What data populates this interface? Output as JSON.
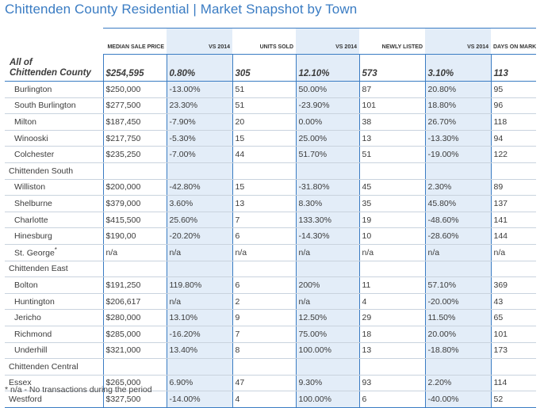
{
  "title": "Chittenden County Residential | Market Snapshot by Town",
  "headers": [
    "",
    "MEDIAN SALE PRICE",
    "VS 2014",
    "UNITS SOLD",
    "VS 2014",
    "NEWLY LISTED",
    "VS 2014",
    "DAYS ON MARKET"
  ],
  "summary": {
    "label_line1": "All of",
    "label_line2": "Chittenden County",
    "values": [
      "$254,595",
      "0.80%",
      "305",
      "12.10%",
      "573",
      "3.10%",
      "113"
    ]
  },
  "rows": [
    {
      "kind": "child",
      "label": "Burlington",
      "values": [
        "$250,000",
        "-13.00%",
        "51",
        "50.00%",
        "87",
        "20.80%",
        "95"
      ]
    },
    {
      "kind": "child",
      "label": "South Burlington",
      "values": [
        "$277,500",
        "23.30%",
        "51",
        "-23.90%",
        "101",
        "18.80%",
        "96"
      ]
    },
    {
      "kind": "child",
      "label": "Milton",
      "values": [
        "$187,450",
        "-7.90%",
        "20",
        "0.00%",
        "38",
        "26.70%",
        "118"
      ]
    },
    {
      "kind": "child",
      "label": "Winooski",
      "values": [
        "$217,750",
        "-5.30%",
        "15",
        "25.00%",
        "13",
        "-13.30%",
        "94"
      ]
    },
    {
      "kind": "child",
      "label": "Colchester",
      "values": [
        "$235,250",
        "-7.00%",
        "44",
        "51.70%",
        "51",
        "-19.00%",
        "122"
      ]
    },
    {
      "kind": "group",
      "label": "Chittenden South",
      "values": [
        "",
        "",
        "",
        "",
        "",
        "",
        ""
      ]
    },
    {
      "kind": "child",
      "label": "Williston",
      "values": [
        "$200,000",
        "-42.80%",
        "15",
        "-31.80%",
        "45",
        "2.30%",
        "89"
      ]
    },
    {
      "kind": "child",
      "label": "Shelburne",
      "values": [
        "$379,000",
        "3.60%",
        "13",
        "8.30%",
        "35",
        "45.80%",
        "137"
      ]
    },
    {
      "kind": "child",
      "label": "Charlotte",
      "values": [
        "$415,500",
        "25.60%",
        "7",
        "133.30%",
        "19",
        "-48.60%",
        "141"
      ]
    },
    {
      "kind": "child",
      "label": "Hinesburg",
      "values": [
        "$190,00",
        "-20.20%",
        "6",
        "-14.30%",
        "10",
        "-28.60%",
        "144"
      ]
    },
    {
      "kind": "child",
      "label": "St. George",
      "sup": "*",
      "values": [
        "n/a",
        "n/a",
        "n/a",
        "n/a",
        "n/a",
        "n/a",
        "n/a"
      ]
    },
    {
      "kind": "group",
      "label": "Chittenden East",
      "values": [
        "",
        "",
        "",
        "",
        "",
        "",
        ""
      ]
    },
    {
      "kind": "child",
      "label": "Bolton",
      "values": [
        "$191,250",
        "119.80%",
        "6",
        "200%",
        "11",
        "57.10%",
        "369"
      ]
    },
    {
      "kind": "child",
      "label": "Huntington",
      "values": [
        "$206,617",
        "n/a",
        "2",
        "n/a",
        "4",
        "-20.00%",
        "43"
      ]
    },
    {
      "kind": "child",
      "label": "Jericho",
      "values": [
        "$280,000",
        "13.10%",
        "9",
        "12.50%",
        "29",
        "11.50%",
        "65"
      ]
    },
    {
      "kind": "child",
      "label": "Richmond",
      "values": [
        "$285,000",
        "-16.20%",
        "7",
        "75.00%",
        "18",
        "20.00%",
        "101"
      ]
    },
    {
      "kind": "child",
      "label": "Underhill",
      "values": [
        "$321,000",
        "13.40%",
        "8",
        "100.00%",
        "13",
        "-18.80%",
        "173"
      ]
    },
    {
      "kind": "group",
      "label": "Chittenden Central",
      "values": [
        "",
        "",
        "",
        "",
        "",
        "",
        ""
      ]
    },
    {
      "kind": "plain",
      "label": "Essex",
      "values": [
        "$265,000",
        "6.90%",
        "47",
        "9.30%",
        "93",
        "2.20%",
        "114"
      ]
    },
    {
      "kind": "plain",
      "label": "Westford",
      "values": [
        "$327,500",
        "-14.00%",
        "4",
        "100.00%",
        "6",
        "-40.00%",
        "52"
      ]
    }
  ],
  "footnote": "* n/a - No transactions during the period",
  "colors": {
    "accent": "#3a7cc3",
    "tint": "#e3edf8"
  }
}
